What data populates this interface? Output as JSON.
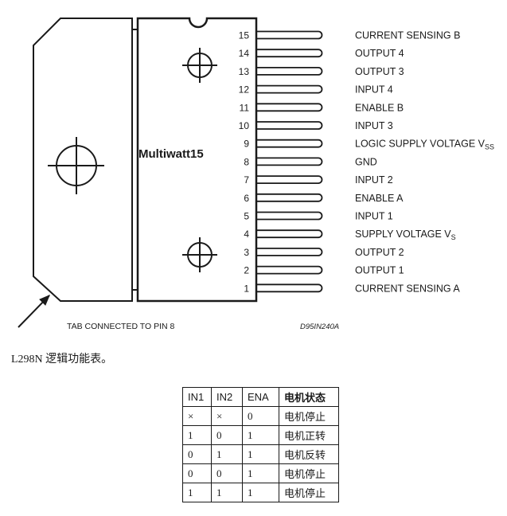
{
  "diagram": {
    "package_name": "Multiwatt15",
    "tab_note": "TAB CONNECTED TO PIN 8",
    "drawing_code": "D95IN240A",
    "pins": [
      {
        "num": "15",
        "label": "CURRENT SENSING B",
        "sub": ""
      },
      {
        "num": "14",
        "label": "OUTPUT 4",
        "sub": ""
      },
      {
        "num": "13",
        "label": "OUTPUT 3",
        "sub": ""
      },
      {
        "num": "12",
        "label": "INPUT 4",
        "sub": ""
      },
      {
        "num": "11",
        "label": "ENABLE B",
        "sub": ""
      },
      {
        "num": "10",
        "label": "INPUT 3",
        "sub": ""
      },
      {
        "num": "9",
        "label": "LOGIC SUPPLY VOLTAGE V",
        "sub": "SS"
      },
      {
        "num": "8",
        "label": "GND",
        "sub": ""
      },
      {
        "num": "7",
        "label": "INPUT 2",
        "sub": ""
      },
      {
        "num": "6",
        "label": "ENABLE A",
        "sub": ""
      },
      {
        "num": "5",
        "label": "INPUT 1",
        "sub": ""
      },
      {
        "num": "4",
        "label": "SUPPLY VOLTAGE V",
        "sub": "S"
      },
      {
        "num": "3",
        "label": "OUTPUT 2",
        "sub": ""
      },
      {
        "num": "2",
        "label": "OUTPUT 1",
        "sub": ""
      },
      {
        "num": "1",
        "label": "CURRENT SENSING A",
        "sub": ""
      }
    ]
  },
  "caption": "L298N 逻辑功能表。",
  "logic_table": {
    "headers": [
      "IN1",
      "IN2",
      "ENA",
      "电机状态"
    ],
    "rows": [
      [
        "×",
        "×",
        "0",
        "电机停止"
      ],
      [
        "1",
        "0",
        "1",
        "电机正转"
      ],
      [
        "0",
        "1",
        "1",
        "电机反转"
      ],
      [
        "0",
        "0",
        "1",
        "电机停止"
      ],
      [
        "1",
        "1",
        "1",
        "电机停止"
      ]
    ]
  }
}
